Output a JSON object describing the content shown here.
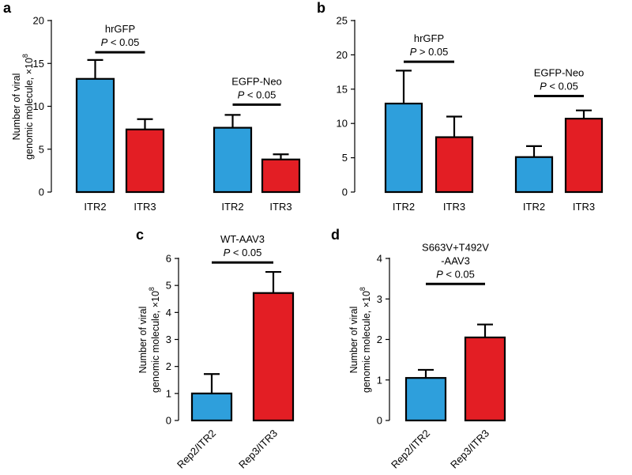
{
  "chart_data": [
    {
      "panel": "a",
      "type": "bar",
      "ylabel_lines": [
        "Number of viral",
        "genomic molecule, ×10"
      ],
      "ylabel_exp": "8",
      "ylim": [
        0,
        20
      ],
      "yticks": [
        0,
        5,
        10,
        15,
        20
      ],
      "categories": [
        "ITR2",
        "ITR3",
        "ITR2",
        "ITR3"
      ],
      "values": [
        13.2,
        7.3,
        7.5,
        3.8
      ],
      "errors": [
        2.2,
        1.2,
        1.5,
        0.6
      ],
      "colors": [
        "#2e9fdc",
        "#e31e24",
        "#2e9fdc",
        "#e31e24"
      ],
      "comparisons": [
        {
          "label": "hrGFP",
          "stat_symbol": "P",
          "stat_rest": " < 0.05",
          "bars": [
            0,
            1
          ],
          "level": 16.3
        },
        {
          "label": "EGFP-Neo",
          "stat_symbol": "P",
          "stat_rest": " < 0.05",
          "bars": [
            2,
            3
          ],
          "level": 10.2
        }
      ]
    },
    {
      "panel": "b",
      "type": "bar",
      "ylabel_lines": [],
      "ylabel_exp": "",
      "ylim": [
        0,
        25
      ],
      "yticks": [
        0,
        5,
        10,
        15,
        20,
        25
      ],
      "categories": [
        "ITR2",
        "ITR3",
        "ITR2",
        "ITR3"
      ],
      "values": [
        12.9,
        8.0,
        5.1,
        10.7
      ],
      "errors": [
        4.8,
        3.0,
        1.6,
        1.2
      ],
      "colors": [
        "#2e9fdc",
        "#e31e24",
        "#2e9fdc",
        "#e31e24"
      ],
      "comparisons": [
        {
          "label": "hrGFP",
          "stat_symbol": "P",
          "stat_rest": " > 0.05",
          "bars": [
            0,
            1
          ],
          "level": 19.0
        },
        {
          "label": "EGFP-Neo",
          "stat_symbol": "P",
          "stat_rest": " < 0.05",
          "bars": [
            2,
            3
          ],
          "level": 14.0
        }
      ]
    },
    {
      "panel": "c",
      "type": "bar",
      "ylabel_lines": [
        "Number of viral",
        "genomic molecule, ×10"
      ],
      "ylabel_exp": "8",
      "ylim": [
        0,
        6
      ],
      "yticks": [
        0,
        1,
        2,
        3,
        4,
        5,
        6
      ],
      "categories": [
        "Rep2/ITR2",
        "Rep3/ITR3"
      ],
      "values": [
        1.0,
        4.72
      ],
      "errors": [
        0.72,
        0.78
      ],
      "colors": [
        "#2e9fdc",
        "#e31e24"
      ],
      "comparisons": [
        {
          "label": "WT-AAV3",
          "stat_symbol": "P",
          "stat_rest": " < 0.05",
          "bars": [
            0,
            1
          ],
          "level": 5.85
        }
      ]
    },
    {
      "panel": "d",
      "type": "bar",
      "ylabel_lines": [
        "Number of viral",
        "genomic molecule, ×10"
      ],
      "ylabel_exp": "8",
      "ylim": [
        0,
        4
      ],
      "yticks": [
        0,
        1,
        2,
        3,
        4
      ],
      "categories": [
        "Rep2/ITR2",
        "Rep3/ITR3"
      ],
      "values": [
        1.05,
        2.05
      ],
      "errors": [
        0.2,
        0.32
      ],
      "colors": [
        "#2e9fdc",
        "#e31e24"
      ],
      "comparisons": [
        {
          "label": "S663V+T492V",
          "label2": "-AAV3",
          "stat_symbol": "P",
          "stat_rest": " < 0.05",
          "bars": [
            0,
            1
          ],
          "level": 3.37
        }
      ]
    }
  ]
}
